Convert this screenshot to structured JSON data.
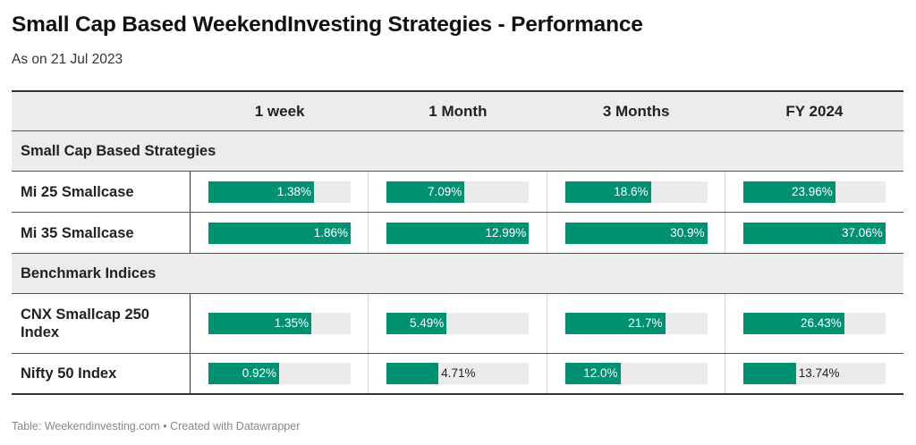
{
  "title": "Small Cap Based WeekendInvesting Strategies - Performance",
  "subtitle": "As on 21 Jul 2023",
  "footer": "Table: Weekendinvesting.com • Created with Datawrapper",
  "colors": {
    "bar": "#009173",
    "track": "#ebebeb",
    "header_bg": "#ececec"
  },
  "chart_data": {
    "type": "table",
    "title": "Small Cap Based WeekendInvesting Strategies - Performance",
    "columns": [
      "1 week",
      "1 Month",
      "3 Months",
      "FY 2024"
    ],
    "column_max": [
      1.86,
      12.99,
      30.9,
      37.06
    ],
    "groups": [
      {
        "name": "Small Cap Based Strategies",
        "rows": [
          {
            "label": "Mi 25 Smallcase",
            "values": [
              1.38,
              7.09,
              18.6,
              23.96
            ],
            "labels": [
              "1.38%",
              "7.09%",
              "18.6%",
              "23.96%"
            ]
          },
          {
            "label": "Mi 35 Smallcase",
            "values": [
              1.86,
              12.99,
              30.9,
              37.06
            ],
            "labels": [
              "1.86%",
              "12.99%",
              "30.9%",
              "37.06%"
            ]
          }
        ]
      },
      {
        "name": "Benchmark Indices",
        "rows": [
          {
            "label": "CNX Smallcap 250 Index",
            "values": [
              1.35,
              5.49,
              21.7,
              26.43
            ],
            "labels": [
              "1.35%",
              "5.49%",
              "21.7%",
              "26.43%"
            ]
          },
          {
            "label": "Nifty 50 Index",
            "values": [
              0.92,
              4.71,
              12.0,
              13.74
            ],
            "labels": [
              "0.92%",
              "4.71%",
              "12.0%",
              "13.74%"
            ]
          }
        ]
      }
    ]
  }
}
